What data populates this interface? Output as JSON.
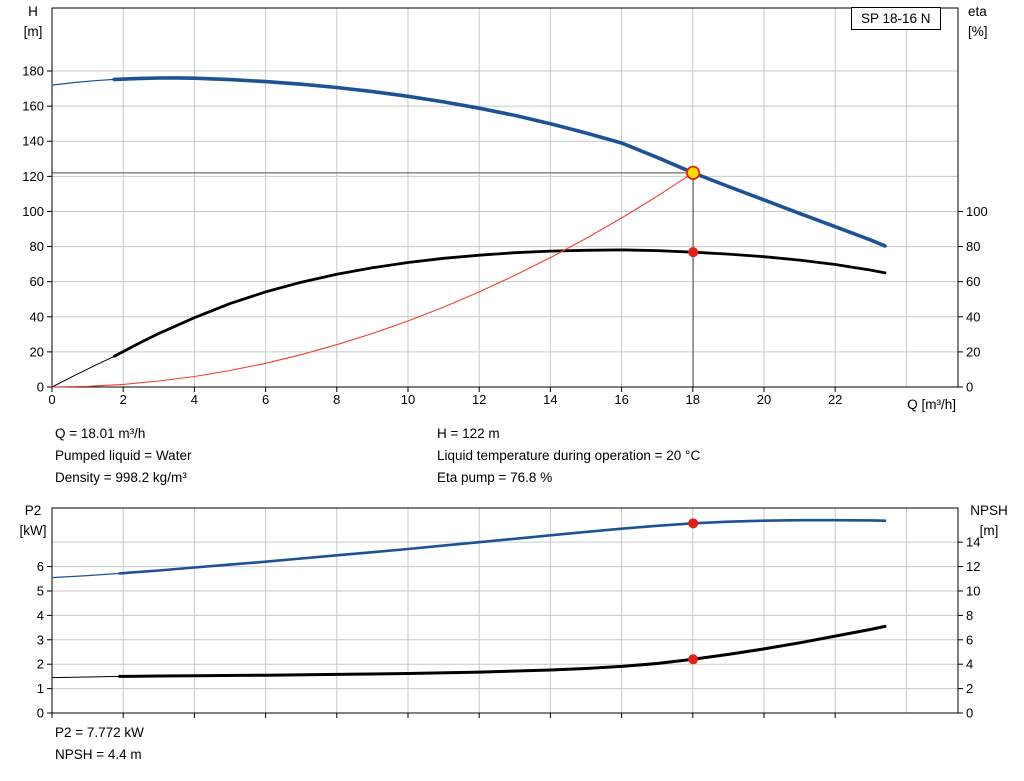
{
  "colors": {
    "blue": "#1d5296",
    "black": "#000000",
    "red": "#e32119",
    "red_line": "#ef4135",
    "grid": "#c9c9c9",
    "frame": "#000000",
    "crosshair": "#4a4a4a",
    "duty_fill": "#ffdf00"
  },
  "annotations": {
    "col1": [
      "Q = 18.01 m³/h",
      "Pumped liquid = Water",
      "Density = 998.2 kg/m³"
    ],
    "col2": [
      "H = 122 m",
      "Liquid temperature during operation = 20 °C",
      "Eta pump = 76.8 %"
    ],
    "bottom": [
      "P2 = 7.772 kW",
      "NPSH = 4.4 m"
    ]
  },
  "chart_data": [
    {
      "type": "line",
      "name": "qh-eta",
      "title": "SP 18-16 N",
      "x_axis": {
        "label": "Q [m³/h]",
        "min": 0,
        "max": 25.45,
        "ticks": [
          0,
          2,
          4,
          6,
          8,
          10,
          12,
          14,
          16,
          18,
          20,
          22
        ],
        "grid": [
          2,
          4,
          6,
          8,
          10,
          12,
          14,
          16,
          18,
          20,
          22,
          24
        ]
      },
      "left_axis": {
        "title": [
          "H",
          "[m]"
        ],
        "min": 0,
        "max": 215.9,
        "ticks": [
          0,
          20,
          40,
          60,
          80,
          100,
          120,
          140,
          160,
          180
        ]
      },
      "right_axis": {
        "title": [
          "eta",
          "[%]"
        ],
        "min": 0,
        "max": 215.9,
        "ticks": [
          0,
          20,
          40,
          60,
          80,
          100
        ]
      },
      "grid_h": [
        20,
        40,
        60,
        80,
        100,
        120,
        140,
        160,
        180
      ],
      "crosshair": {
        "q": 18.01,
        "value": 122
      },
      "series": [
        {
          "name": "head-curve-lead",
          "axis": "left",
          "color": "blue",
          "width": 1.2,
          "points": [
            [
              0,
              172
            ],
            [
              0.6,
              173.4
            ],
            [
              1.2,
              174.5
            ],
            [
              1.75,
              175.2
            ]
          ]
        },
        {
          "name": "head-curve",
          "axis": "left",
          "color": "blue",
          "width": 3.6,
          "points": [
            [
              1.75,
              175.2
            ],
            [
              2.5,
              175.8
            ],
            [
              3,
              176
            ],
            [
              3.5,
              176.1
            ],
            [
              4,
              175.9
            ],
            [
              5,
              175.1
            ],
            [
              6,
              174
            ],
            [
              7,
              172.5
            ],
            [
              8,
              170.6
            ],
            [
              9,
              168.3
            ],
            [
              10,
              165.6
            ],
            [
              11,
              162.4
            ],
            [
              12,
              158.8
            ],
            [
              13,
              154.7
            ],
            [
              14,
              150
            ],
            [
              15,
              144.7
            ],
            [
              16,
              139
            ],
            [
              17,
              130.8
            ],
            [
              18.01,
              122
            ],
            [
              19,
              114.2
            ],
            [
              20,
              106.6
            ],
            [
              21,
              98.9
            ],
            [
              22,
              91.3
            ],
            [
              23,
              83.7
            ],
            [
              23.4,
              80.4
            ]
          ]
        },
        {
          "name": "eta-curve-lead",
          "axis": "right",
          "color": "black",
          "width": 1,
          "points": [
            [
              0,
              0
            ],
            [
              0.6,
              6.2
            ],
            [
              1.2,
              12.2
            ],
            [
              1.75,
              17.5
            ]
          ]
        },
        {
          "name": "eta-curve",
          "axis": "right",
          "color": "black",
          "width": 2.8,
          "points": [
            [
              1.75,
              17.5
            ],
            [
              2.5,
              25.5
            ],
            [
              3,
              30.5
            ],
            [
              4,
              39.5
            ],
            [
              5,
              47.5
            ],
            [
              6,
              54.2
            ],
            [
              7,
              59.7
            ],
            [
              8,
              64.2
            ],
            [
              9,
              67.9
            ],
            [
              10,
              70.9
            ],
            [
              11,
              73.3
            ],
            [
              12,
              75.1
            ],
            [
              13,
              76.5
            ],
            [
              14,
              77.4
            ],
            [
              15,
              77.9
            ],
            [
              16,
              78.1
            ],
            [
              17,
              77.7
            ],
            [
              18.01,
              76.8
            ],
            [
              19,
              75.7
            ],
            [
              20,
              74.2
            ],
            [
              21,
              72.3
            ],
            [
              22,
              69.8
            ],
            [
              23,
              66.6
            ],
            [
              23.4,
              65
            ]
          ]
        },
        {
          "name": "system-curve",
          "axis": "left",
          "color": "red_line",
          "width": 1.1,
          "points": [
            [
              0,
              0
            ],
            [
              1,
              0.4
            ],
            [
              2,
              1.5
            ],
            [
              3,
              3.4
            ],
            [
              4,
              6
            ],
            [
              5,
              9.4
            ],
            [
              6,
              13.5
            ],
            [
              7,
              18.4
            ],
            [
              8,
              24.1
            ],
            [
              9,
              30.5
            ],
            [
              10,
              37.6
            ],
            [
              11,
              45.5
            ],
            [
              12,
              54.2
            ],
            [
              13,
              63.6
            ],
            [
              14,
              73.7
            ],
            [
              15,
              84.6
            ],
            [
              16,
              96.3
            ],
            [
              17,
              108.7
            ],
            [
              18.01,
              122
            ]
          ]
        }
      ],
      "markers": [
        {
          "q": 18.01,
          "value": 122,
          "axis": "left",
          "style": "duty",
          "name": "duty-point-marker"
        },
        {
          "q": 18.01,
          "value": 76.8,
          "axis": "right",
          "style": "dot",
          "name": "eta-point-marker"
        }
      ]
    },
    {
      "type": "line",
      "name": "p2-npsh",
      "x_axis": {
        "label": "",
        "min": 0,
        "max": 25.45,
        "ticks": [
          0,
          2,
          4,
          6,
          8,
          10,
          12,
          14,
          16,
          18,
          20,
          22
        ],
        "grid": [
          2,
          4,
          6,
          8,
          10,
          12,
          14,
          16,
          18,
          20,
          22,
          24
        ]
      },
      "left_axis": {
        "title": [
          "P2",
          "[kW]"
        ],
        "min": 0,
        "max": 8.4,
        "ticks": [
          0,
          1,
          2,
          3,
          4,
          5,
          6
        ]
      },
      "right_axis": {
        "title": [
          "NPSH",
          "[m]"
        ],
        "min": 0,
        "max": 16.8,
        "ticks": [
          0,
          2,
          4,
          6,
          8,
          10,
          12,
          14
        ]
      },
      "grid_h": [
        1,
        2,
        3,
        4,
        5,
        6,
        7
      ],
      "series": [
        {
          "name": "p2-curve-lead",
          "axis": "left",
          "color": "blue",
          "width": 1.2,
          "points": [
            [
              0,
              5.55
            ],
            [
              1,
              5.63
            ],
            [
              1.9,
              5.72
            ]
          ]
        },
        {
          "name": "p2-curve",
          "axis": "left",
          "color": "blue",
          "width": 2.6,
          "points": [
            [
              1.9,
              5.72
            ],
            [
              3,
              5.84
            ],
            [
              4,
              5.96
            ],
            [
              5,
              6.08
            ],
            [
              6,
              6.2
            ],
            [
              7,
              6.33
            ],
            [
              8,
              6.46
            ],
            [
              9,
              6.59
            ],
            [
              10,
              6.72
            ],
            [
              11,
              6.86
            ],
            [
              12,
              7
            ],
            [
              13,
              7.14
            ],
            [
              14,
              7.28
            ],
            [
              15,
              7.42
            ],
            [
              16,
              7.55
            ],
            [
              17,
              7.67
            ],
            [
              18.01,
              7.772
            ],
            [
              19,
              7.84
            ],
            [
              20,
              7.88
            ],
            [
              21,
              7.9
            ],
            [
              22,
              7.9
            ],
            [
              23,
              7.89
            ],
            [
              23.4,
              7.88
            ]
          ]
        },
        {
          "name": "npsh-curve-lead",
          "axis": "right",
          "color": "black",
          "width": 1,
          "points": [
            [
              0,
              2.9
            ],
            [
              1,
              2.95
            ],
            [
              1.9,
              3
            ]
          ]
        },
        {
          "name": "npsh-curve",
          "axis": "right",
          "color": "black",
          "width": 3,
          "points": [
            [
              1.9,
              3
            ],
            [
              3,
              3.03
            ],
            [
              4,
              3.06
            ],
            [
              6,
              3.1
            ],
            [
              8,
              3.16
            ],
            [
              10,
              3.24
            ],
            [
              12,
              3.35
            ],
            [
              14,
              3.52
            ],
            [
              15,
              3.65
            ],
            [
              16,
              3.82
            ],
            [
              17,
              4.06
            ],
            [
              18.01,
              4.4
            ],
            [
              19,
              4.8
            ],
            [
              20,
              5.25
            ],
            [
              21,
              5.75
            ],
            [
              22,
              6.3
            ],
            [
              23,
              6.85
            ],
            [
              23.4,
              7.1
            ]
          ]
        }
      ],
      "markers": [
        {
          "q": 18.01,
          "value": 7.772,
          "axis": "left",
          "style": "dot",
          "name": "p2-point-marker"
        },
        {
          "q": 18.01,
          "value": 4.4,
          "axis": "right",
          "style": "dot",
          "name": "npsh-point-marker"
        }
      ]
    }
  ]
}
